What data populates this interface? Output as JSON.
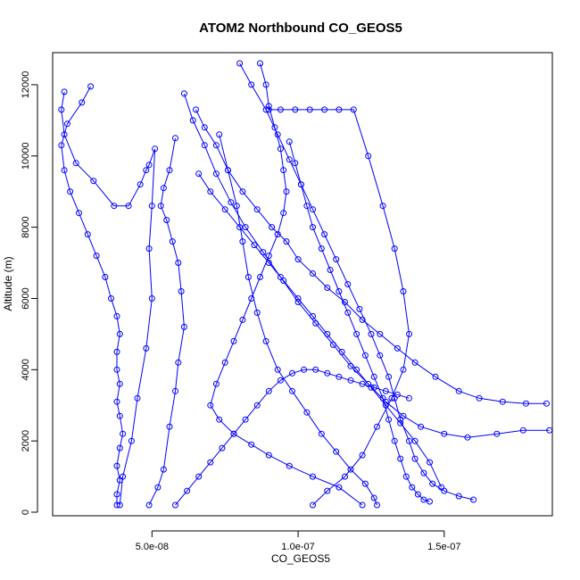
{
  "chart_data": {
    "type": "line",
    "title": "ATOM2 Northbound CO_GEOS5",
    "xlabel": "CO_GEOS5",
    "ylabel": "Altitude (m)",
    "xlim": [
      1.6e-08,
      1.87e-07
    ],
    "ylim": [
      -100,
      12900
    ],
    "x_ticks": [
      5e-08,
      1e-07,
      1.5e-07
    ],
    "x_tick_labels": [
      "5.0e-08",
      "1.0e-07",
      "1.5e-07"
    ],
    "y_ticks": [
      0,
      2000,
      4000,
      6000,
      8000,
      10000,
      12000
    ],
    "y_tick_labels": [
      "0",
      "2000",
      "4000",
      "6000",
      "8000",
      "10000",
      "12000"
    ],
    "marker": "open-circle",
    "line_color": "#0000ff",
    "grid": false,
    "legend": "none",
    "series": [
      {
        "x": [
          3.8e-08,
          3.8e-08,
          3.9e-08,
          3.8e-08,
          3.9e-08,
          4e-08,
          3.9e-08,
          3.8e-08,
          3.9e-08,
          3.8e-08,
          3.8e-08,
          3.9e-08,
          3.8e-08,
          3.6e-08,
          3.4e-08,
          3.1e-08,
          2.8e-08,
          2.5e-08,
          2.2e-08,
          2e-08,
          1.9e-08,
          2.1e-08,
          2.6e-08,
          2.9e-08
        ],
        "y": [
          200,
          500,
          900,
          1300,
          1800,
          2200,
          2700,
          3100,
          3600,
          4000,
          4500,
          5000,
          5500,
          6000,
          6600,
          7200,
          7800,
          8400,
          9000,
          9600,
          10300,
          10900,
          11500,
          11950
        ]
      },
      {
        "x": [
          2e-08,
          1.9e-08,
          2e-08,
          2.4e-08,
          3e-08,
          3.7e-08,
          4.2e-08,
          4.6e-08,
          4.8e-08,
          4.9e-08,
          5.1e-08,
          5e-08,
          4.9e-08,
          5e-08,
          4.8e-08,
          4.5e-08,
          4.3e-08,
          4e-08,
          3.9e-08
        ],
        "y": [
          11800,
          11300,
          10600,
          9800,
          9300,
          8600,
          8600,
          9200,
          9600,
          9750,
          10200,
          8600,
          7400,
          6000,
          4600,
          3200,
          2000,
          1000,
          200
        ]
      },
      {
        "x": [
          4.9e-08,
          5.2e-08,
          5.4e-08,
          5.6e-08,
          5.8e-08,
          5.9e-08,
          6.1e-08,
          6e-08,
          5.9e-08,
          5.7e-08,
          5.5e-08,
          5.3e-08,
          5.4e-08,
          5.6e-08,
          5.8e-08
        ],
        "y": [
          200,
          700,
          1200,
          2400,
          3400,
          4200,
          5200,
          6200,
          7000,
          7600,
          8200,
          8600,
          9100,
          9600,
          10500
        ]
      },
      {
        "x": [
          6.5e-08,
          6.8e-08,
          7.2e-08,
          7.6e-08,
          8.1e-08,
          8.6e-08,
          9.1e-08,
          9.6e-08,
          1e-07,
          1.05e-07,
          1.1e-07,
          1.16e-07,
          1.22e-07,
          1.28e-07,
          1.34e-07,
          1.4e-07,
          1.47e-07,
          1.55e-07,
          1.62e-07,
          1.7e-07,
          1.78e-07,
          1.85e-07
        ],
        "y": [
          11300,
          10800,
          10300,
          9600,
          9000,
          8500,
          8000,
          7600,
          7100,
          6700,
          6300,
          5900,
          5400,
          5000,
          4600,
          4200,
          3800,
          3400,
          3200,
          3100,
          3050,
          3050
        ]
      },
      {
        "x": [
          6.1e-08,
          6.4e-08,
          6.8e-08,
          7.2e-08,
          7.7e-08,
          8.2e-08,
          8.8e-08,
          9.4e-08,
          1e-07,
          1.06e-07,
          1.12e-07,
          1.18e-07,
          1.24e-07,
          1.3e-07,
          1.36e-07,
          1.42e-07,
          1.5e-07,
          1.58e-07,
          1.68e-07,
          1.77e-07,
          1.86e-07
        ],
        "y": [
          11750,
          11000,
          10300,
          9500,
          8700,
          8000,
          7300,
          6600,
          5900,
          5300,
          4700,
          4100,
          3600,
          3100,
          2700,
          2400,
          2200,
          2100,
          2200,
          2300,
          2300
        ]
      },
      {
        "x": [
          8e-08,
          8.4e-08,
          8.9e-08,
          9.3e-08,
          9.7e-08,
          1.01e-07,
          1.05e-07,
          1.09e-07,
          1.13e-07,
          1.17e-07,
          1.21e-07,
          1.25e-07,
          1.28e-07,
          1.31e-07,
          1.33e-07,
          1.35e-07,
          1.38e-07,
          1.4e-07,
          1.43e-07,
          1.46e-07,
          1.5e-07,
          1.55e-07,
          1.6e-07
        ],
        "y": [
          12600,
          12000,
          11300,
          10600,
          9900,
          9200,
          8500,
          7800,
          7100,
          6400,
          5700,
          5000,
          4400,
          3800,
          3200,
          2600,
          2000,
          1500,
          1100,
          800,
          600,
          450,
          350
        ]
      },
      {
        "x": [
          8.7e-08,
          8.9e-08,
          9e-08,
          9.2e-08,
          9.4e-08,
          9.5e-08,
          9.6e-08,
          9.5e-08,
          9.3e-08,
          9e-08,
          8.7e-08,
          8.4e-08,
          8.1e-08,
          7.8e-08,
          7.5e-08,
          7.2e-08,
          7e-08,
          7.3e-08,
          7.8e-08,
          8.4e-08,
          9e-08,
          9.7e-08,
          1.05e-07,
          1.14e-07,
          1.22e-07
        ],
        "y": [
          12600,
          12000,
          11400,
          10800,
          10200,
          9600,
          9000,
          8400,
          7800,
          7200,
          6600,
          6000,
          5400,
          4800,
          4200,
          3600,
          3000,
          2600,
          2200,
          1900,
          1600,
          1300,
          1000,
          700,
          200
        ]
      },
      {
        "x": [
          9e-08,
          9.4e-08,
          9.9e-08,
          1.04e-07,
          1.09e-07,
          1.14e-07,
          1.19e-07,
          1.24e-07,
          1.29e-07,
          1.33e-07,
          1.36e-07,
          1.38e-07,
          1.36e-07,
          1.32e-07,
          1.27e-07,
          1.22e-07,
          1.16e-07,
          1.1e-07,
          1.05e-07
        ],
        "y": [
          11300,
          11300,
          11300,
          11300,
          11300,
          11300,
          11300,
          10000,
          8600,
          7400,
          6200,
          5000,
          4000,
          3200,
          2400,
          1600,
          1000,
          600,
          200
        ]
      },
      {
        "x": [
          6.6e-08,
          7e-08,
          7.5e-08,
          8e-08,
          8.5e-08,
          9e-08,
          9.5e-08,
          1e-07,
          1.05e-07,
          1.1e-07,
          1.15e-07,
          1.2e-07,
          1.25e-07,
          1.3e-07,
          1.35e-07,
          1.4e-07,
          1.45e-07,
          1.49e-07
        ],
        "y": [
          9500,
          9000,
          8500,
          8000,
          7500,
          7000,
          6500,
          6000,
          5500,
          5000,
          4500,
          4000,
          3500,
          3000,
          2500,
          2000,
          1400,
          700
        ]
      },
      {
        "x": [
          7.3e-08,
          7.6e-08,
          7.9e-08,
          8.1e-08,
          8.3e-08,
          8.6e-08,
          8.9e-08,
          9.3e-08,
          9.8e-08,
          1.03e-07,
          1.08e-07,
          1.13e-07,
          1.18e-07,
          1.23e-07,
          1.26e-07,
          1.27e-07
        ],
        "y": [
          10600,
          9600,
          8600,
          7600,
          6600,
          5600,
          4800,
          4000,
          3400,
          2800,
          2200,
          1700,
          1200,
          800,
          400,
          200
        ]
      },
      {
        "x": [
          5.8e-08,
          6.2e-08,
          6.6e-08,
          7e-08,
          7.4e-08,
          7.8e-08,
          8.2e-08,
          8.6e-08,
          9e-08,
          9.4e-08,
          9.8e-08,
          1.02e-07,
          1.06e-07,
          1.1e-07,
          1.14e-07,
          1.18e-07,
          1.22e-07,
          1.26e-07,
          1.3e-07,
          1.34e-07,
          1.38e-07
        ],
        "y": [
          200,
          600,
          1000,
          1400,
          1800,
          2200,
          2600,
          3000,
          3400,
          3700,
          3900,
          4000,
          4000,
          3900,
          3800,
          3700,
          3600,
          3500,
          3400,
          3300,
          3200
        ]
      },
      {
        "x": [
          9.7e-08,
          9.9e-08,
          1.01e-07,
          1.03e-07,
          1.05e-07,
          1.08e-07,
          1.11e-07,
          1.14e-07,
          1.17e-07,
          1.2e-07,
          1.23e-07,
          1.26e-07,
          1.29e-07,
          1.31e-07,
          1.33e-07,
          1.35e-07,
          1.37e-07,
          1.39e-07,
          1.41e-07,
          1.43e-07,
          1.45e-07
        ],
        "y": [
          10400,
          9800,
          9200,
          8600,
          8000,
          7400,
          6800,
          6200,
          5600,
          5000,
          4400,
          3800,
          3200,
          2600,
          2000,
          1500,
          1000,
          700,
          500,
          350,
          300
        ]
      }
    ]
  }
}
